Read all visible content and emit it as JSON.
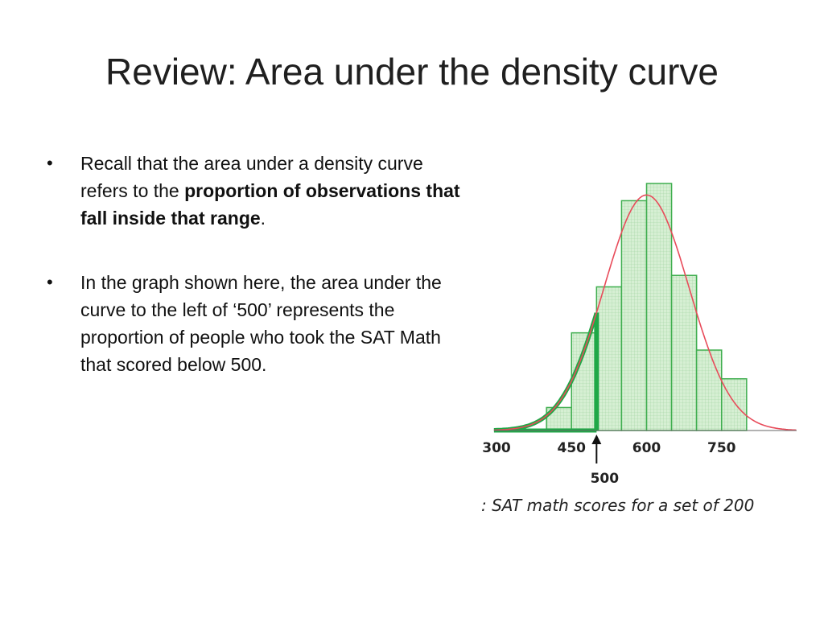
{
  "slide": {
    "title": "Review: Area under the density curve",
    "bullets": [
      {
        "before": "Recall that the area under a density curve refers to the ",
        "bold": "proportion of observations that fall inside that range",
        "after": "."
      },
      {
        "text": "In the graph shown here, the area under the curve to the left of ‘500’ represents the proportion of people who took the SAT Math that scored below 500."
      }
    ],
    "bullet_glyph": "•"
  },
  "chart_data": {
    "type": "bar",
    "title": "",
    "xlabel": "",
    "ylabel": "",
    "x_ticks": [
      "300",
      "450",
      "600",
      "750"
    ],
    "marker_label": "500",
    "caption": ": SAT math scores for a set of 200",
    "bin_width": 50,
    "categories": [
      "400–450",
      "450–500",
      "500–550",
      "550–600",
      "600–650",
      "650–700",
      "700–750",
      "750–800"
    ],
    "values": [
      4,
      17,
      25,
      40,
      43,
      27,
      14,
      9
    ],
    "bar_color": "#cfeccc",
    "bar_stroke": "#3fae4f",
    "curve_color": "#e84b5a",
    "shade_color": "#1fa847",
    "shaded_below": 500,
    "curve_mean": 600,
    "curve_sd": 85
  }
}
